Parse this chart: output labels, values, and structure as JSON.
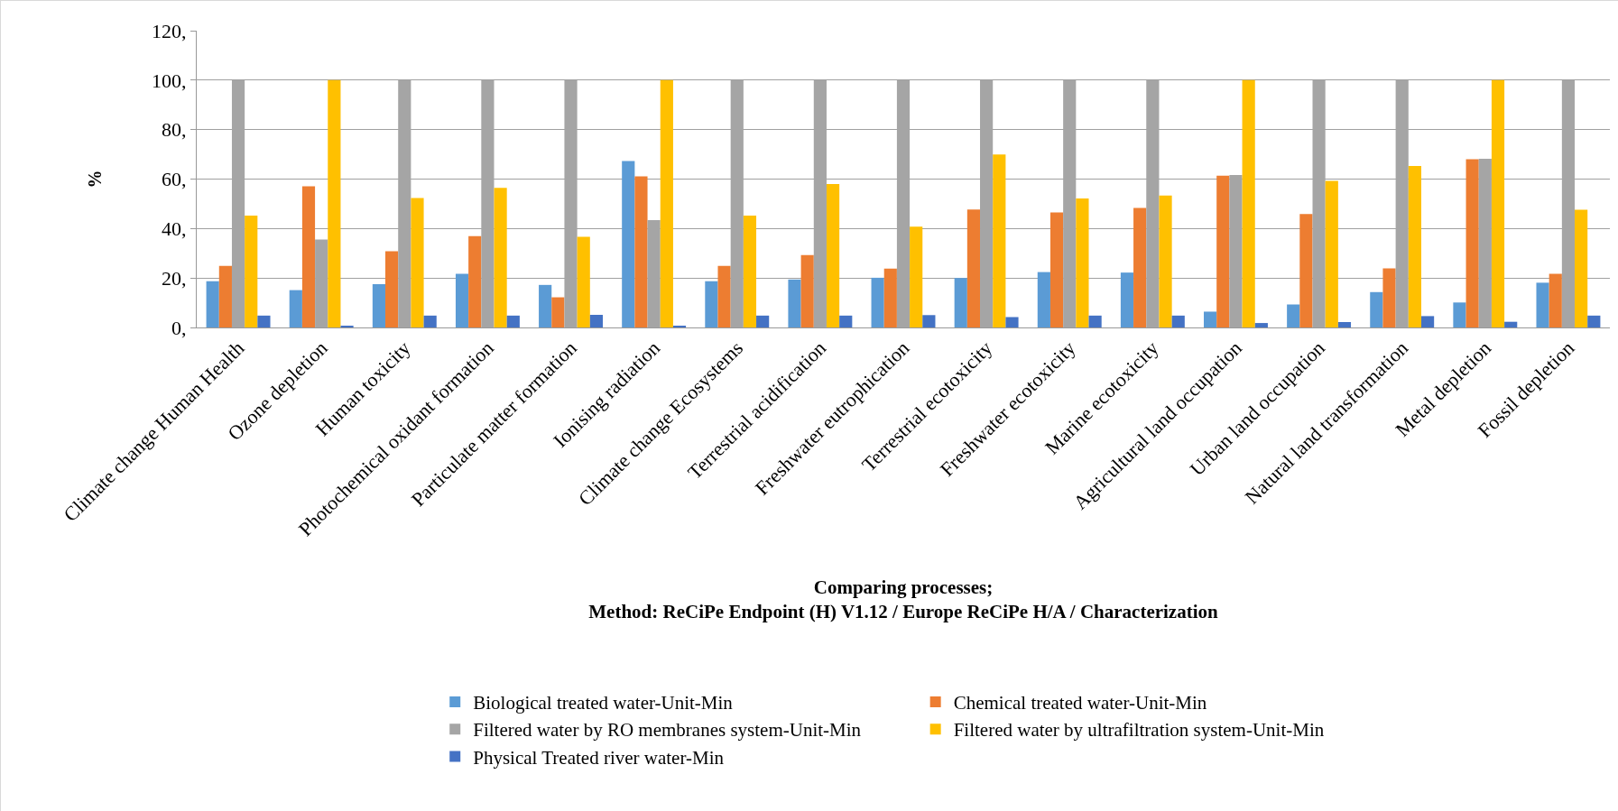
{
  "chart_data": {
    "type": "bar",
    "xlabel": "Comparing processes;\nMethod: ReCiPe Endpoint (H) V1.12 / Europe ReCiPe H/A / Characterization",
    "ylabel": "%",
    "categories": [
      "Climate change Human Health",
      "Ozone depletion",
      "Human toxicity",
      "Photochemical oxidant formation",
      "Particulate matter formation",
      "Ionising radiation",
      "Climate change Ecosystems",
      "Terrestrial acidification",
      "Freshwater eutrophication",
      "Terrestrial ecotoxicity",
      "Freshwater ecotoxicity",
      "Marine ecotoxicity",
      "Agricultural land occupation",
      "Urban land occupation",
      "Natural land transformation",
      "Metal depletion",
      "Fossil depletion"
    ],
    "series": [
      {
        "name": "Biological treated water-Unit-Min",
        "color": "#5b9bd5",
        "values": [
          18.7,
          15.1,
          17.5,
          21.7,
          17.2,
          67.3,
          18.7,
          19.4,
          20.1,
          20.0,
          22.4,
          22.2,
          6.4,
          9.3,
          14.3,
          10.1,
          18.1
        ]
      },
      {
        "name": "Chemical treated water-Unit-Min",
        "color": "#ed7d31",
        "values": [
          24.9,
          57.1,
          30.8,
          36.9,
          12.2,
          61.1,
          24.9,
          29.3,
          23.8,
          47.7,
          46.5,
          48.3,
          61.4,
          45.9,
          23.9,
          68.0,
          21.7
        ]
      },
      {
        "name": "Filtered water by RO membranes system-Unit-Min",
        "color": "#a5a5a5",
        "values": [
          100,
          35.6,
          100,
          100,
          100,
          43.4,
          100,
          100,
          100,
          100,
          100,
          100,
          61.6,
          100,
          100,
          68.2,
          100
        ]
      },
      {
        "name": "Filtered water by ultrafiltration system-Unit-Min",
        "color": "#ffc000",
        "values": [
          45.2,
          100,
          52.3,
          56.4,
          36.7,
          100,
          45.2,
          58.0,
          40.8,
          69.9,
          52.2,
          53.3,
          100,
          59.3,
          65.3,
          100,
          47.6
        ]
      },
      {
        "name": "Physical Treated river water-Min",
        "color": "#4472c4",
        "values": [
          4.8,
          0.7,
          4.8,
          4.8,
          5.1,
          0.7,
          4.8,
          4.8,
          5.0,
          4.2,
          4.8,
          4.8,
          1.8,
          2.2,
          4.6,
          2.3,
          4.8
        ]
      }
    ],
    "ylim": [
      0,
      120
    ],
    "yticks": [
      {
        "value": 0,
        "label": "0,"
      },
      {
        "value": 20,
        "label": "20,"
      },
      {
        "value": 40,
        "label": "40,"
      },
      {
        "value": 60,
        "label": "60,"
      },
      {
        "value": 80,
        "label": "80,"
      },
      {
        "value": 100,
        "label": "100,"
      },
      {
        "value": 120,
        "label": "120,"
      }
    ],
    "grid": "y",
    "legend": "bottom"
  }
}
